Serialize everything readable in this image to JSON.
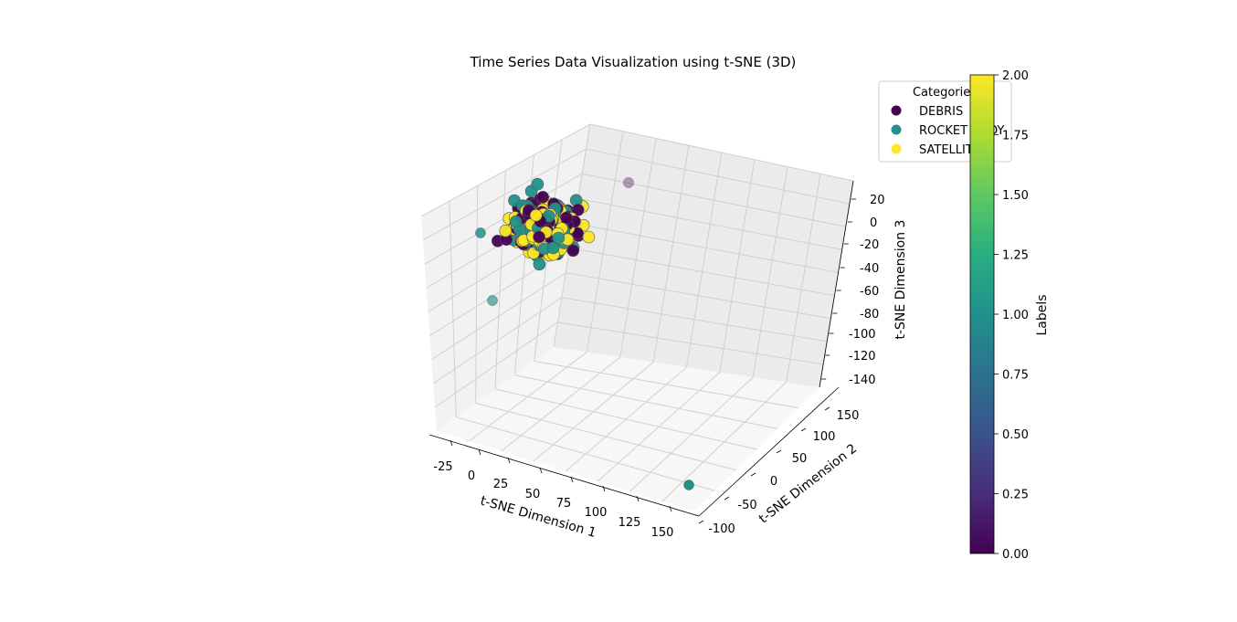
{
  "chart_data": {
    "type": "scatter",
    "projection": "3d",
    "title": "Time Series Data Visualization using t-SNE (3D)",
    "xlabel": "t-SNE Dimension 1",
    "ylabel": "t-SNE Dimension 2",
    "zlabel": "t-SNE Dimension 3",
    "x_ticks": [
      "-25",
      "0",
      "25",
      "50",
      "75",
      "100",
      "125",
      "150"
    ],
    "y_ticks": [
      "-100",
      "-50",
      "0",
      "50",
      "100",
      "150"
    ],
    "z_ticks": [
      "20",
      "0",
      "-20",
      "-40",
      "-60",
      "-80",
      "-100",
      "-120",
      "-140"
    ],
    "xlim": [
      -35,
      170
    ],
    "ylim": [
      -115,
      170
    ],
    "zlim": [
      -150,
      30
    ],
    "grid": true,
    "legend": {
      "title": "Categories",
      "placement": "top-right",
      "entries": [
        {
          "label": "DEBRIS",
          "color": "#440154"
        },
        {
          "label": "ROCKET BODY",
          "color": "#21918c"
        },
        {
          "label": "SATELLITE",
          "color": "#fde725"
        }
      ]
    },
    "colorbar": {
      "label": "Labels",
      "colormap": "viridis",
      "range": [
        0,
        2
      ],
      "ticks": [
        "0.00",
        "0.25",
        "0.50",
        "0.75",
        "1.00",
        "1.25",
        "1.50",
        "1.75",
        "2.00"
      ]
    },
    "cluster": {
      "description_center": [
        40,
        45,
        0
      ],
      "labels": [
        0,
        1,
        2
      ]
    },
    "outliers": [
      {
        "x": -25,
        "y": 150,
        "z": 15,
        "label": 1
      },
      {
        "x": -15,
        "y": 140,
        "z": -40,
        "label": 1
      },
      {
        "x": 20,
        "y": -100,
        "z": 40,
        "label": 0
      },
      {
        "x": 165,
        "y": 40,
        "z": -130,
        "label": 1
      }
    ]
  }
}
